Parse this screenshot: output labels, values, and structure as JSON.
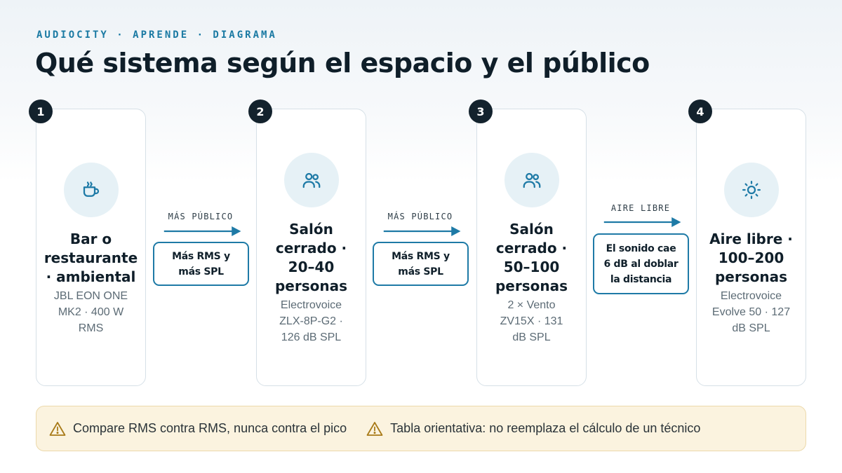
{
  "header": {
    "eyebrow": "AUDIOCITY · APRENDE · DIAGRAMA",
    "title": "Qué sistema según el espacio y el público"
  },
  "steps": [
    {
      "number": "1",
      "icon": "cup-icon",
      "title_lines": [
        "Bar o",
        "restaurante",
        "· ambiental"
      ],
      "sub_lines": [
        "JBL EON ONE",
        "MK2 · 400 W",
        "RMS"
      ]
    },
    {
      "number": "2",
      "icon": "people-icon",
      "title_lines": [
        "Salón",
        "cerrado ·",
        "20–40",
        "personas"
      ],
      "sub_lines": [
        "Electrovoice",
        "ZLX-8P-G2 ·",
        "126 dB SPL"
      ]
    },
    {
      "number": "3",
      "icon": "people-icon",
      "title_lines": [
        "Salón",
        "cerrado ·",
        "50–100",
        "personas"
      ],
      "sub_lines": [
        "2 × Vento",
        "ZV15X · 131",
        "dB SPL"
      ]
    },
    {
      "number": "4",
      "icon": "sun-icon",
      "title_lines": [
        "Aire libre ·",
        "100–200",
        "personas"
      ],
      "sub_lines": [
        "Electrovoice",
        "Evolve 50 · 127",
        "dB SPL"
      ]
    }
  ],
  "transitions": [
    {
      "label": "MÁS PÚBLICO",
      "note_lines": [
        "Más RMS y",
        "más SPL"
      ]
    },
    {
      "label": "MÁS PÚBLICO",
      "note_lines": [
        "Más RMS y",
        "más SPL"
      ]
    },
    {
      "label": "AIRE LIBRE",
      "note_lines": [
        "El sonido cae",
        "6 dB al doblar",
        "la distancia"
      ]
    }
  ],
  "footer": {
    "warnings": [
      "Compare RMS contra RMS, nunca contra el pico",
      "Tabla orientativa: no reemplaza el cálculo de un técnico"
    ]
  },
  "colors": {
    "accent": "#1e7aa6",
    "badge": "#13222d",
    "warning_bg": "#fbf3df",
    "icon_bg": "#e6f1f6"
  }
}
